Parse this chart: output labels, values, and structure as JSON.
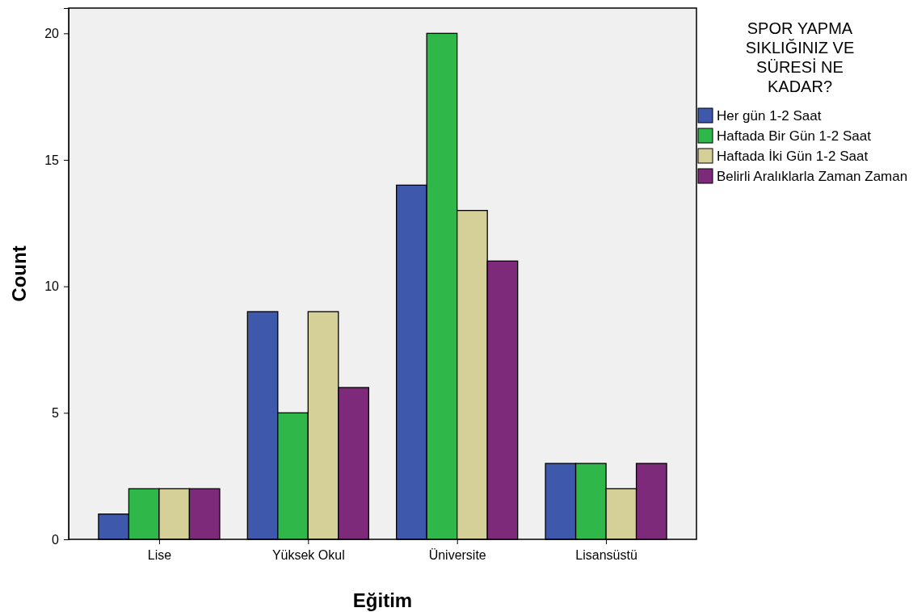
{
  "chart_data": {
    "type": "bar",
    "xlabel": "Eğitim",
    "ylabel": "Count",
    "legend_title": "SPOR YAPMA SIKLIĞINIZ VE SÜRESİ NE KADAR?",
    "categories": [
      "Lise",
      "Yüksek Okul",
      "Üniversite",
      "Lisansüstü"
    ],
    "series": [
      {
        "name": "Her gün 1-2 Saat",
        "color": "#3e58ac",
        "values": [
          1,
          9,
          14,
          3
        ]
      },
      {
        "name": "Haftada Bir Gün 1-2 Saat",
        "color": "#2fb74a",
        "values": [
          2,
          5,
          20,
          3
        ]
      },
      {
        "name": "Haftada İki Gün 1-2 Saat",
        "color": "#d5cf98",
        "values": [
          2,
          9,
          13,
          2
        ]
      },
      {
        "name": "Belirli Aralıklarla Zaman Zaman",
        "color": "#7e2a7b",
        "values": [
          2,
          6,
          11,
          3
        ]
      }
    ],
    "ylim": [
      0,
      21
    ],
    "yticks": [
      0,
      5,
      10,
      15,
      20
    ],
    "grid": false,
    "legend": "top right"
  }
}
